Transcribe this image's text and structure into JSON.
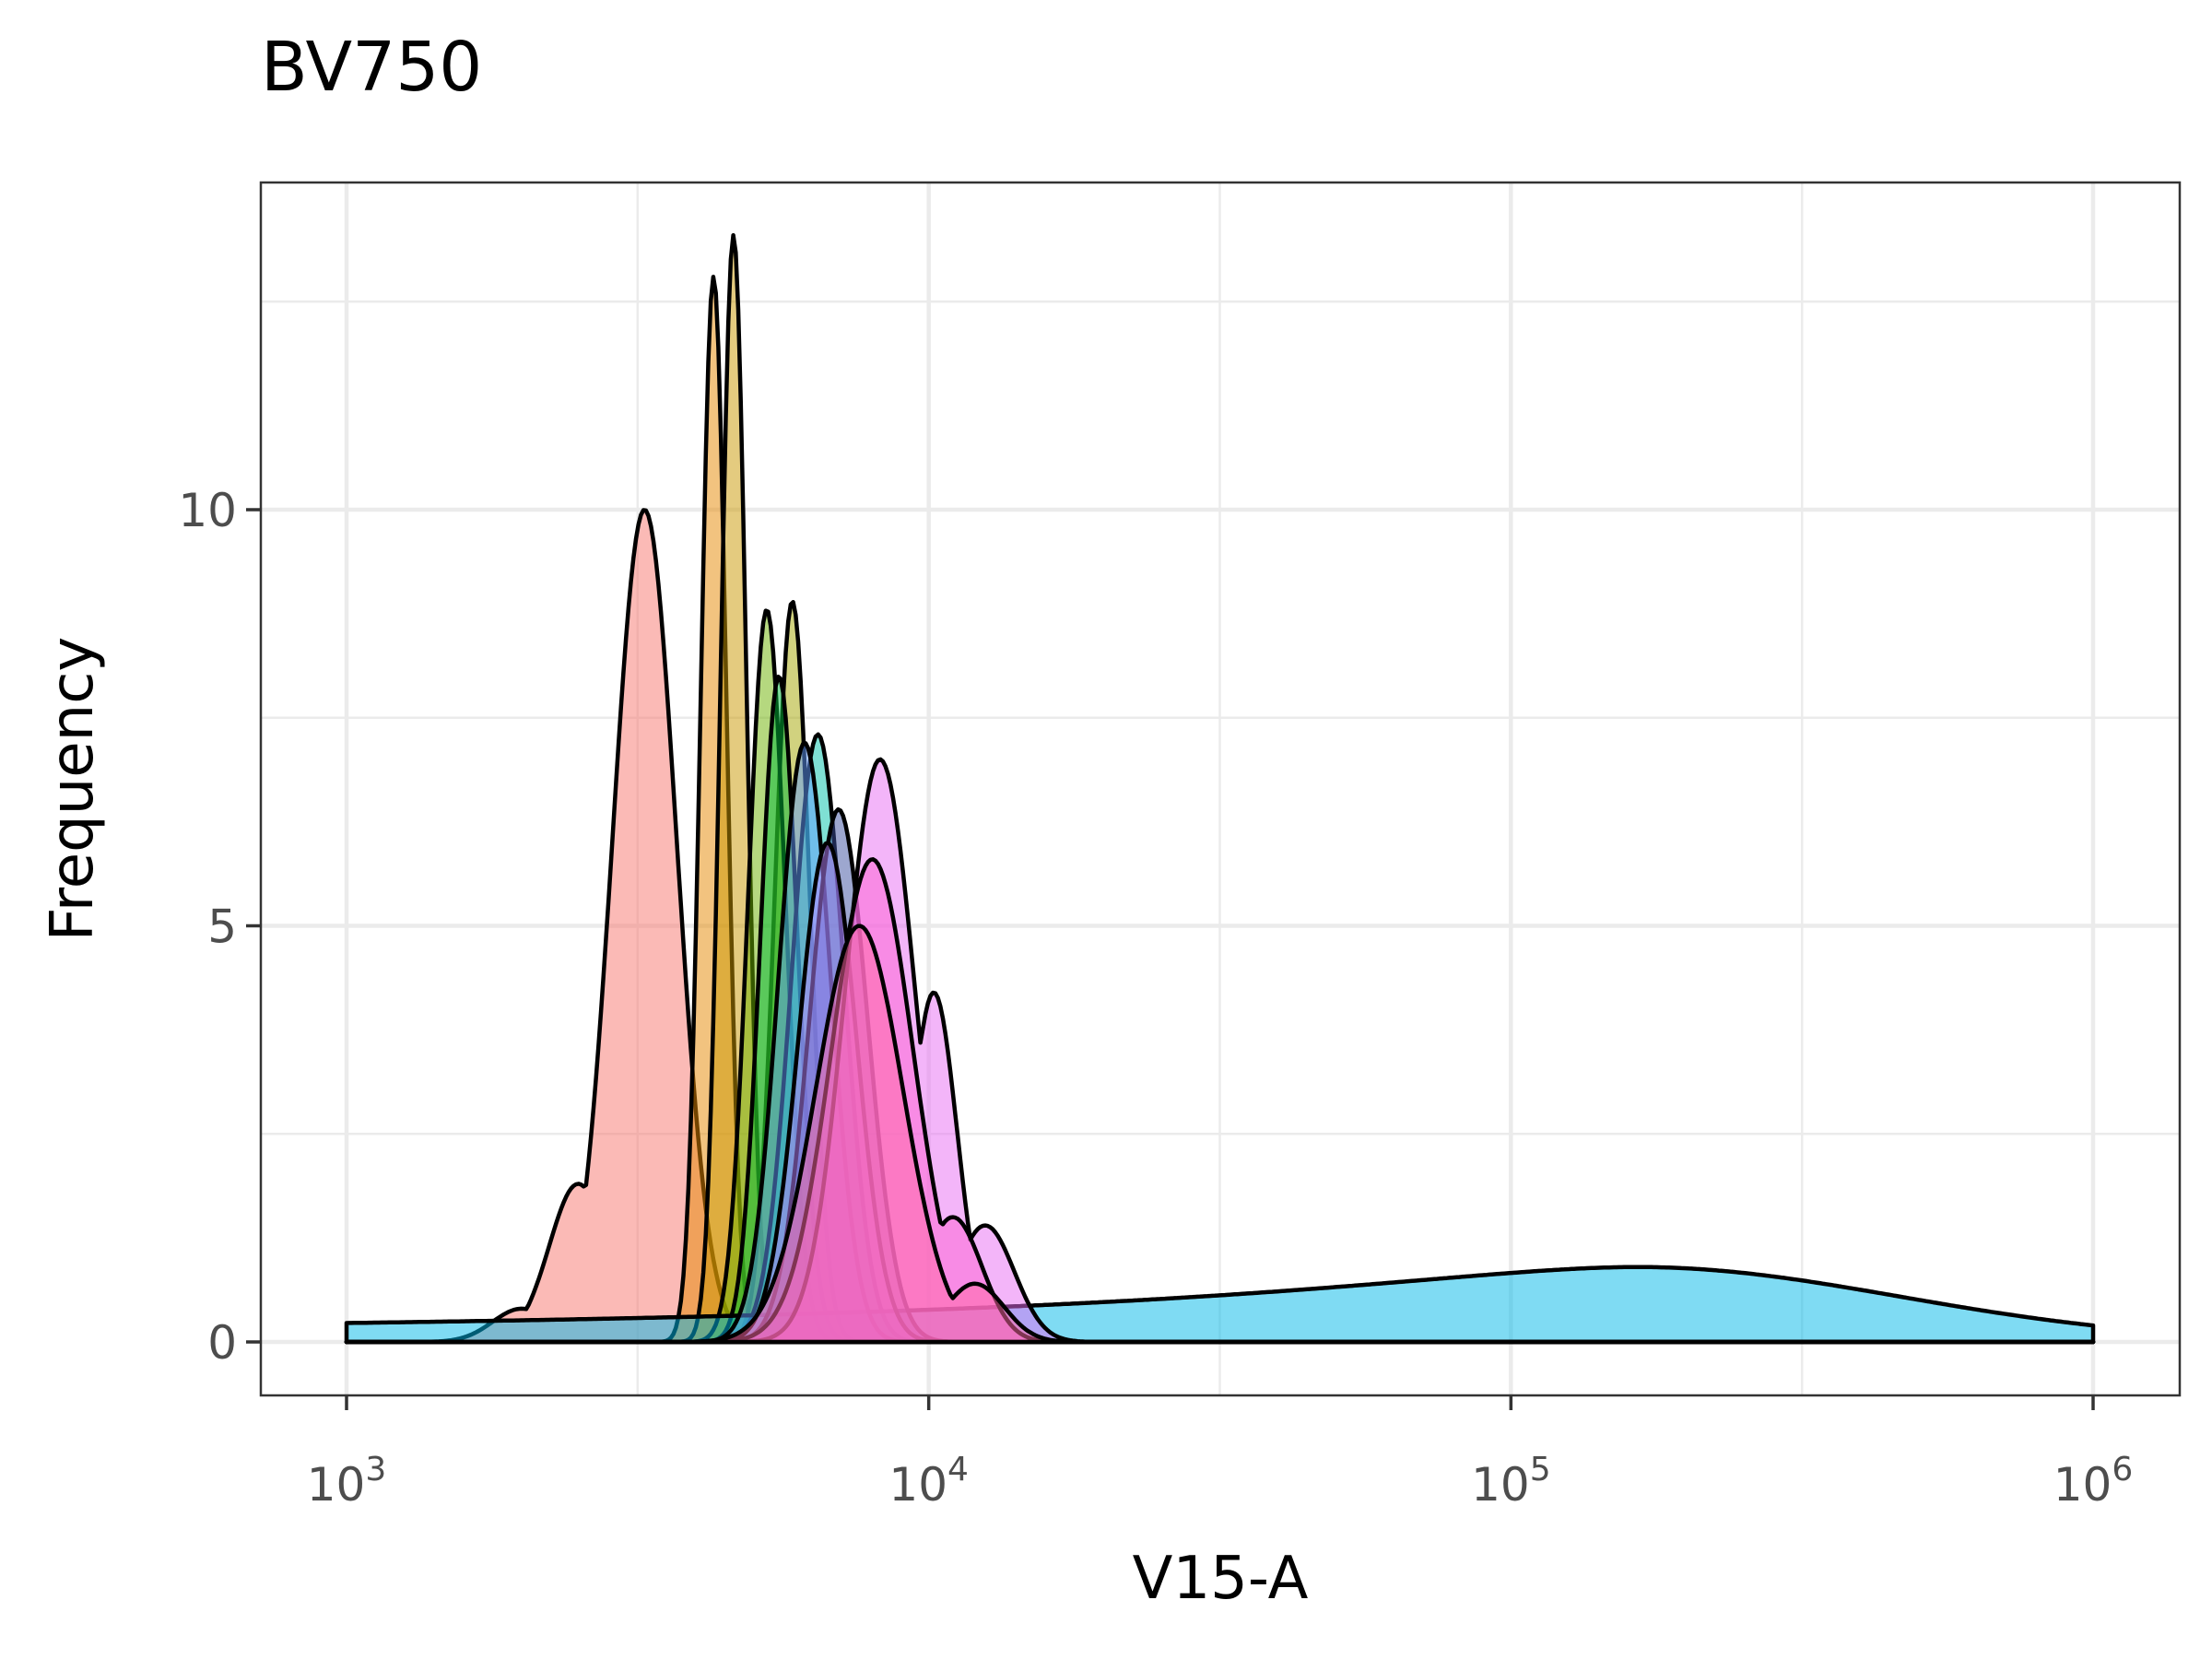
{
  "chart_data": {
    "type": "area",
    "title": "BV750",
    "xlabel": "V15-A",
    "ylabel": "Frequency",
    "x_scale": "log10",
    "xlim": [
      1000,
      1000000
    ],
    "ylim": [
      0,
      13.5
    ],
    "x_ticks": [
      {
        "value": 1000,
        "base": "10",
        "exp": "3"
      },
      {
        "value": 10000,
        "base": "10",
        "exp": "4"
      },
      {
        "value": 100000,
        "base": "10",
        "exp": "5"
      },
      {
        "value": 1000000,
        "base": "10",
        "exp": "6"
      }
    ],
    "y_ticks": [
      {
        "value": 0,
        "label": "0"
      },
      {
        "value": 5,
        "label": "5"
      },
      {
        "value": 10,
        "label": "10"
      }
    ],
    "grid": true,
    "legend": "none",
    "series": [
      {
        "color": "#F8766D",
        "peak_x": 3250,
        "peak_y": 10.0,
        "width": 0.055,
        "shoulders": [
          {
            "x": 2500,
            "y": 1.9,
            "w": 0.05
          },
          {
            "x": 2000,
            "y": 0.4,
            "w": 0.05
          }
        ]
      },
      {
        "color": "#E58700",
        "peak_x": 4270,
        "peak_y": 12.8,
        "width": 0.022,
        "shoulders": []
      },
      {
        "color": "#C99800",
        "peak_x": 4620,
        "peak_y": 13.3,
        "width": 0.022,
        "shoulders": []
      },
      {
        "color": "#A3A500",
        "peak_x": 5830,
        "peak_y": 8.9,
        "width": 0.03,
        "shoulders": []
      },
      {
        "color": "#6BB100",
        "peak_x": 5270,
        "peak_y": 8.8,
        "width": 0.032,
        "shoulders": []
      },
      {
        "color": "#00BA38",
        "peak_x": 5530,
        "peak_y": 8.0,
        "width": 0.032,
        "shoulders": []
      },
      {
        "color": "#00C1AA",
        "peak_x": 6450,
        "peak_y": 7.3,
        "width": 0.045,
        "shoulders": []
      },
      {
        "color": "#00B8E7",
        "peak_x": 165000,
        "peak_y": 0.9,
        "width": 0.45,
        "low_tail": 0.18,
        "shoulders": []
      },
      {
        "color": "#619CFF",
        "peak_x": 6120,
        "peak_y": 7.2,
        "width": 0.045,
        "shoulders": []
      },
      {
        "color": "#3B4FA0",
        "peak_x": 7000,
        "peak_y": 6.4,
        "width": 0.05,
        "shoulders": []
      },
      {
        "color": "#B983FF",
        "peak_x": 6700,
        "peak_y": 6.0,
        "width": 0.05,
        "shoulders": []
      },
      {
        "color": "#E76BF3",
        "peak_x": 8250,
        "peak_y": 7.0,
        "width": 0.06,
        "shoulders": [
          {
            "x": 10200,
            "y": 4.2,
            "w": 0.04
          },
          {
            "x": 12500,
            "y": 1.4,
            "w": 0.05
          }
        ]
      },
      {
        "color": "#FD61D1",
        "peak_x": 8000,
        "peak_y": 5.8,
        "width": 0.07,
        "shoulders": [
          {
            "x": 11000,
            "y": 1.5,
            "w": 0.05
          }
        ]
      },
      {
        "color": "#FF67A4",
        "peak_x": 7600,
        "peak_y": 5.0,
        "width": 0.075,
        "shoulders": [
          {
            "x": 12000,
            "y": 0.7,
            "w": 0.05
          }
        ]
      }
    ]
  }
}
